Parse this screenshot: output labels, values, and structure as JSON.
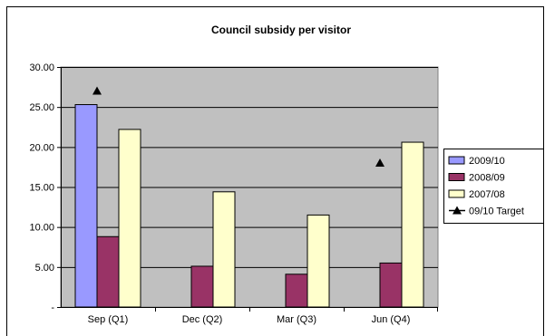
{
  "chart_data": {
    "type": "bar",
    "title": "Council subsidy per visitor",
    "xlabel": "",
    "ylabel": "",
    "categories": [
      "Sep (Q1)",
      "Dec (Q2)",
      "Mar (Q3)",
      "Jun (Q4)"
    ],
    "ylim": [
      0,
      30
    ],
    "yticks": [
      0,
      5,
      10,
      15,
      20,
      25,
      30
    ],
    "ytick_labels": [
      "-",
      "5.00",
      "10.00",
      "15.00",
      "20.00",
      "25.00",
      "30.00"
    ],
    "grid": true,
    "legend_position": "right",
    "plot_background": "#c0c0c0",
    "series": [
      {
        "name": "2009/10",
        "kind": "bar",
        "color": "#9999ff",
        "values": [
          25.3,
          null,
          null,
          null
        ]
      },
      {
        "name": "2008/09",
        "kind": "bar",
        "color": "#993366",
        "values": [
          8.8,
          5.1,
          4.1,
          5.5
        ]
      },
      {
        "name": "2007/08",
        "kind": "bar",
        "color": "#ffffcc",
        "values": [
          22.2,
          14.4,
          11.5,
          20.6
        ]
      },
      {
        "name": "09/10 Target",
        "kind": "marker",
        "marker": "triangle",
        "color": "#000000",
        "values": [
          27.0,
          null,
          null,
          18.0
        ]
      }
    ]
  }
}
